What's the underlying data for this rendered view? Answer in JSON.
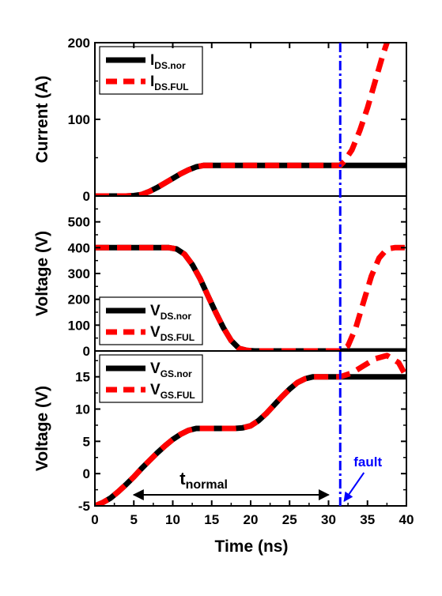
{
  "chart_data": {
    "type": "line",
    "x_axis": {
      "label": "Time (ns)",
      "range": [
        0,
        40
      ],
      "ticks": [
        0,
        5,
        10,
        15,
        20,
        25,
        30,
        35,
        40
      ],
      "tick_labels": [
        "0",
        "5",
        "10",
        "15",
        "20",
        "25",
        "30",
        "35",
        "40"
      ]
    },
    "fault": {
      "x": 31.5,
      "label": "fault",
      "color": "#0000ff"
    },
    "t_normal": {
      "label": "t",
      "sub": "normal",
      "from": 5,
      "to": 30
    },
    "colors": {
      "nor": "#000000",
      "ful": "#ff0000",
      "fault": "#0000ff"
    },
    "panels": [
      {
        "ylabel": "Current (A)",
        "ylim": [
          0,
          200
        ],
        "yticks": [
          0,
          100,
          200
        ],
        "ytick_labels": [
          "0",
          "100",
          "200"
        ],
        "legend": [
          {
            "main": "I",
            "sub": "DS.nor",
            "style": "solid"
          },
          {
            "main": "I",
            "sub": "DS.FUL",
            "style": "dashed"
          }
        ],
        "series": [
          {
            "style": "solid",
            "x": [
              0,
              4,
              5,
              6,
              7,
              8,
              9,
              10,
              11,
              12,
              13,
              14,
              15,
              20,
              25,
              30,
              31.5,
              35,
              40
            ],
            "y": [
              0,
              0,
              0.5,
              2,
              6,
              11,
              17,
              23,
              29,
              34,
              38,
              40,
              40,
              40,
              40,
              40,
              40,
              40,
              40
            ]
          },
          {
            "style": "dashed",
            "x": [
              0,
              4,
              5,
              6,
              7,
              8,
              9,
              10,
              11,
              12,
              13,
              14,
              15,
              20,
              25,
              30,
              31.5,
              32,
              33,
              34,
              35,
              36,
              37,
              37.5
            ],
            "y": [
              0,
              0,
              0.5,
              2,
              6,
              11,
              17,
              23,
              29,
              34,
              38,
              40,
              40,
              40,
              40,
              40,
              40,
              45,
              60,
              85,
              115,
              150,
              185,
              200
            ]
          }
        ]
      },
      {
        "ylabel": "Voltage (V)",
        "ylim": [
          0,
          600
        ],
        "yticks": [
          0,
          100,
          200,
          300,
          400,
          500
        ],
        "ytick_labels": [
          "0",
          "100",
          "200",
          "300",
          "400",
          "500"
        ],
        "legend": [
          {
            "main": "V",
            "sub": "DS.nor",
            "style": "solid"
          },
          {
            "main": "V",
            "sub": "DS.FUL",
            "style": "dashed"
          }
        ],
        "series": [
          {
            "style": "solid",
            "x": [
              0,
              5,
              9.5,
              10.5,
              11.5,
              12.5,
              13.5,
              14.5,
              15.5,
              16.5,
              17.5,
              18.5,
              19.5,
              20.5,
              25,
              30,
              31.5,
              35,
              40
            ],
            "y": [
              400,
              400,
              400,
              395,
              375,
              335,
              280,
              215,
              150,
              90,
              40,
              10,
              2,
              0,
              0,
              0,
              0,
              0,
              0
            ]
          },
          {
            "style": "dashed",
            "x": [
              0,
              5,
              9.5,
              10.5,
              11.5,
              12.5,
              13.5,
              14.5,
              15.5,
              16.5,
              17.5,
              18.5,
              19.5,
              20.5,
              25,
              30,
              31.5,
              32.5,
              33.5,
              34.5,
              35.5,
              36.5,
              37.5,
              38.5,
              40
            ],
            "y": [
              400,
              400,
              400,
              395,
              375,
              335,
              280,
              215,
              150,
              90,
              40,
              10,
              2,
              0,
              0,
              0,
              0,
              20,
              90,
              190,
              290,
              360,
              395,
              400,
              400
            ]
          }
        ]
      },
      {
        "ylabel": "Voltage (V)",
        "ylim": [
          -5,
          19
        ],
        "yticks": [
          -5,
          0,
          5,
          10,
          15
        ],
        "ytick_labels": [
          "-5",
          "0",
          "5",
          "10",
          "15"
        ],
        "legend": [
          {
            "main": "V",
            "sub": "GS.nor",
            "style": "solid"
          },
          {
            "main": "V",
            "sub": "GS.FUL",
            "style": "dashed"
          }
        ],
        "series": [
          {
            "style": "solid",
            "x": [
              0,
              1,
              2,
              3,
              4,
              5,
              6,
              7,
              8,
              9,
              10,
              11,
              12,
              13,
              14,
              15,
              16,
              17,
              18,
              19,
              20,
              21,
              22,
              23,
              24,
              25,
              26,
              27,
              28,
              29,
              30,
              31.5,
              35,
              40
            ],
            "y": [
              -5,
              -4.5,
              -3.8,
              -2.8,
              -1.7,
              -0.5,
              0.8,
              2,
              3.2,
              4.3,
              5.3,
              6.1,
              6.7,
              7,
              7,
              7,
              7,
              7,
              7,
              7.1,
              7.4,
              8.2,
              9.3,
              10.6,
              11.9,
              13.1,
              14.1,
              14.7,
              15,
              15,
              15,
              15,
              15,
              15
            ]
          },
          {
            "style": "dashed",
            "x": [
              0,
              1,
              2,
              3,
              4,
              5,
              6,
              7,
              8,
              9,
              10,
              11,
              12,
              13,
              14,
              15,
              16,
              17,
              18,
              19,
              20,
              21,
              22,
              23,
              24,
              25,
              26,
              27,
              28,
              29,
              30,
              31.5,
              33,
              34.5,
              36,
              37.5,
              39,
              40
            ],
            "y": [
              -5,
              -4.5,
              -3.8,
              -2.8,
              -1.7,
              -0.5,
              0.8,
              2,
              3.2,
              4.3,
              5.3,
              6.1,
              6.7,
              7,
              7,
              7,
              7,
              7,
              7,
              7.1,
              7.4,
              8.2,
              9.3,
              10.6,
              11.9,
              13.1,
              14.1,
              14.7,
              15,
              15,
              15,
              15,
              15.6,
              16.7,
              17.8,
              18.3,
              17.2,
              15
            ]
          }
        ]
      }
    ]
  }
}
